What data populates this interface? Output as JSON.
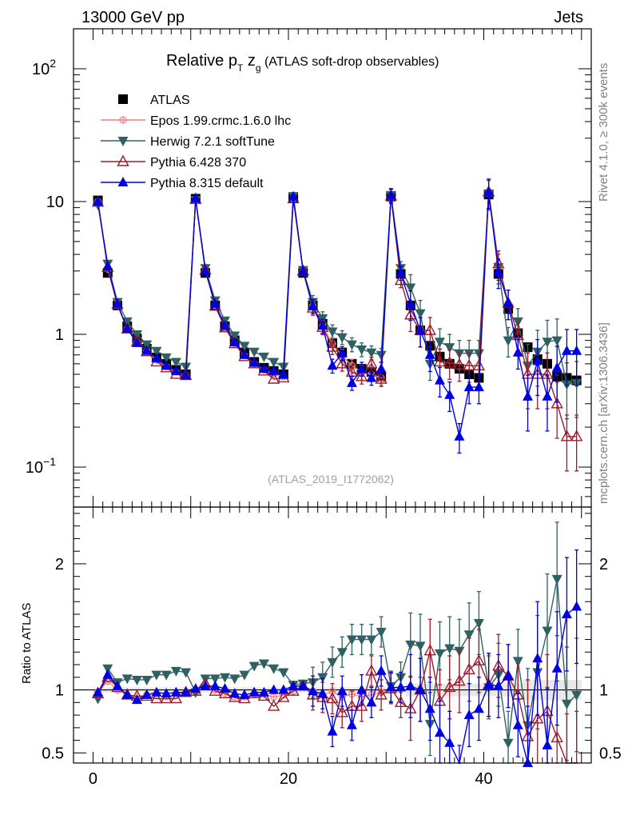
{
  "header": {
    "left": "13000 GeV pp",
    "right": "Jets"
  },
  "side": {
    "top": "Rivet 4.1.0, ≥ 300k events",
    "bottom": "mcplots.cern.ch [arXiv:1306.3436]"
  },
  "title": {
    "main": "Relative p",
    "sub_T": "T",
    "z": " z",
    "sub_g": "g",
    "rest": " (ATLAS soft-drop observables)"
  },
  "analysis_id": "(ATLAS_2019_I1772062)",
  "chart_data": {
    "type": "scatter",
    "xlim": [
      -2,
      51
    ],
    "top_ylim": [
      0.05,
      200
    ],
    "top_yscale": "log",
    "top_yticks": [
      {
        "v": 0.1,
        "l": "10",
        "e": "−1"
      },
      {
        "v": 1,
        "l": "1",
        "e": ""
      },
      {
        "v": 10,
        "l": "10",
        "e": ""
      },
      {
        "v": 100,
        "l": "10",
        "e": "2"
      }
    ],
    "xticks": [
      {
        "v": 0,
        "l": "0"
      },
      {
        "v": 20,
        "l": "20"
      },
      {
        "v": 40,
        "l": "40"
      }
    ],
    "ratio_ylabel": "Ratio to ATLAS",
    "ratio_ylim": [
      0.42,
      2.45
    ],
    "ratio_yticks": [
      {
        "v": 0.5,
        "l": "0.5"
      },
      {
        "v": 1,
        "l": "1"
      },
      {
        "v": 2,
        "l": "2"
      }
    ],
    "legend_position": "top-left",
    "series": [
      {
        "name": "ATLAS",
        "color": "#000000",
        "marker": "square",
        "x": [
          0.5,
          1.5,
          2.5,
          3.5,
          4.5,
          5.5,
          6.5,
          7.5,
          8.5,
          9.5,
          10.5,
          11.5,
          12.5,
          13.5,
          14.5,
          15.5,
          16.5,
          17.5,
          18.5,
          19.5,
          20.5,
          21.5,
          22.5,
          23.5,
          24.5,
          25.5,
          26.5,
          27.5,
          28.5,
          29.5,
          30.5,
          31.5,
          32.5,
          33.5,
          34.5,
          35.5,
          36.5,
          37.5,
          38.5,
          39.5,
          40.5,
          41.5,
          42.5,
          43.5,
          44.5,
          45.5,
          46.5,
          47.5,
          48.5,
          49.5
        ],
        "y": [
          10.2,
          2.9,
          1.65,
          1.15,
          0.93,
          0.78,
          0.67,
          0.6,
          0.54,
          0.5,
          10.5,
          2.9,
          1.65,
          1.15,
          0.9,
          0.73,
          0.62,
          0.56,
          0.53,
          0.5,
          10.6,
          2.9,
          1.65,
          1.2,
          0.86,
          0.73,
          0.6,
          0.55,
          0.52,
          0.48,
          10.9,
          2.85,
          1.65,
          1.07,
          0.82,
          0.68,
          0.6,
          0.55,
          0.5,
          0.47,
          11.3,
          2.85,
          1.55,
          1.02,
          0.8,
          0.65,
          0.6,
          0.48,
          0.47,
          0.45
        ]
      },
      {
        "name": "Epos 1.99.crmc.1.6.0 lhc",
        "color": "#f08080",
        "marker": "open-circle-cross",
        "x": [
          0.5,
          1.5,
          2.5,
          3.5,
          4.5,
          5.5,
          6.5,
          7.5,
          8.5,
          9.5,
          10.5,
          11.5,
          12.5,
          13.5,
          14.5,
          15.5,
          16.5,
          17.5,
          18.5,
          19.5,
          20.5,
          21.5,
          22.5,
          23.5,
          24.5,
          25.5,
          26.5,
          27.5,
          28.5,
          29.5
        ],
        "y": [
          10.0,
          3.1,
          1.65,
          1.1,
          0.88,
          0.75,
          0.64,
          0.57,
          0.52,
          0.49,
          10.3,
          3.0,
          1.65,
          1.12,
          0.85,
          0.69,
          0.6,
          0.54,
          0.5,
          0.48,
          10.5,
          3.0,
          1.63,
          1.15,
          0.85,
          0.69,
          0.58,
          0.52,
          0.5,
          0.47
        ]
      },
      {
        "name": "Herwig 7.2.1 softTune",
        "color": "#2f6163",
        "marker": "triangle-down",
        "x": [
          0.5,
          1.5,
          2.5,
          3.5,
          4.5,
          5.5,
          6.5,
          7.5,
          8.5,
          9.5,
          10.5,
          11.5,
          12.5,
          13.5,
          14.5,
          15.5,
          16.5,
          17.5,
          18.5,
          19.5,
          20.5,
          21.5,
          22.5,
          23.5,
          24.5,
          25.5,
          26.5,
          27.5,
          28.5,
          29.5,
          30.5,
          31.5,
          32.5,
          33.5,
          34.5,
          35.5,
          36.5,
          37.5,
          38.5,
          39.5,
          40.5,
          41.5,
          42.5,
          43.5,
          44.5,
          45.5,
          46.5,
          47.5,
          48.5,
          49.5
        ],
        "y": [
          9.5,
          3.4,
          1.75,
          1.25,
          1.0,
          0.84,
          0.75,
          0.67,
          0.62,
          0.57,
          10.3,
          3.15,
          1.8,
          1.27,
          0.98,
          0.82,
          0.74,
          0.68,
          0.62,
          0.57,
          11.0,
          3.05,
          1.75,
          1.32,
          1.05,
          0.95,
          0.84,
          0.77,
          0.73,
          0.7,
          11.2,
          3.15,
          2.25,
          1.44,
          0.6,
          0.88,
          0.8,
          0.72,
          0.72,
          0.72,
          11.5,
          3.2,
          0.9,
          1.25,
          0.58,
          0.74,
          0.88,
          0.9,
          0.42,
          0.43
        ]
      },
      {
        "name": "Pythia 6.428 370",
        "color": "#9e1a2a",
        "marker": "triangle-up-open",
        "x": [
          0.5,
          1.5,
          2.5,
          3.5,
          4.5,
          5.5,
          6.5,
          7.5,
          8.5,
          9.5,
          10.5,
          11.5,
          12.5,
          13.5,
          14.5,
          15.5,
          16.5,
          17.5,
          18.5,
          19.5,
          20.5,
          21.5,
          22.5,
          23.5,
          24.5,
          25.5,
          26.5,
          27.5,
          28.5,
          29.5,
          30.5,
          31.5,
          32.5,
          33.5,
          34.5,
          35.5,
          36.5,
          37.5,
          38.5,
          39.5,
          40.5,
          41.5,
          42.5,
          43.5,
          44.5,
          45.5,
          46.5,
          47.5,
          48.5,
          49.5
        ],
        "y": [
          9.9,
          3.2,
          1.68,
          1.1,
          0.88,
          0.74,
          0.62,
          0.56,
          0.5,
          0.49,
          10.4,
          3.05,
          1.63,
          1.12,
          0.85,
          0.68,
          0.6,
          0.53,
          0.46,
          0.47,
          10.5,
          3.0,
          1.58,
          1.13,
          0.8,
          0.6,
          0.52,
          0.48,
          0.6,
          0.46,
          11.0,
          2.55,
          1.4,
          1.07,
          1.07,
          0.62,
          0.61,
          0.59,
          0.58,
          0.58,
          11.8,
          3.4,
          1.72,
          0.98,
          0.5,
          0.5,
          0.5,
          0.3,
          0.17,
          0.17
        ]
      },
      {
        "name": "Pythia 8.315 default",
        "color": "#0000e0",
        "marker": "triangle-up",
        "x": [
          0.5,
          1.5,
          2.5,
          3.5,
          4.5,
          5.5,
          6.5,
          7.5,
          8.5,
          9.5,
          10.5,
          11.5,
          12.5,
          13.5,
          14.5,
          15.5,
          16.5,
          17.5,
          18.5,
          19.5,
          20.5,
          21.5,
          22.5,
          23.5,
          24.5,
          25.5,
          26.5,
          27.5,
          28.5,
          29.5,
          30.5,
          31.5,
          32.5,
          33.5,
          34.5,
          35.5,
          36.5,
          37.5,
          38.5,
          39.5,
          40.5,
          41.5,
          42.5,
          43.5,
          44.5,
          45.5,
          46.5,
          47.5,
          48.5,
          49.5
        ],
        "y": [
          10.0,
          3.25,
          1.7,
          1.1,
          0.86,
          0.75,
          0.66,
          0.58,
          0.53,
          0.49,
          10.6,
          3.0,
          1.7,
          1.16,
          0.87,
          0.7,
          0.61,
          0.55,
          0.53,
          0.5,
          10.9,
          3.0,
          1.63,
          1.16,
          0.58,
          0.72,
          0.43,
          0.55,
          0.47,
          0.55,
          11.1,
          2.9,
          1.7,
          1.07,
          0.7,
          0.45,
          0.35,
          0.17,
          0.4,
          0.4,
          11.8,
          2.95,
          1.72,
          0.73,
          0.34,
          0.63,
          0.34,
          0.56,
          0.75,
          0.75
        ]
      }
    ]
  },
  "ratio_data": {
    "Herwig 7.2.1 softTune": [
      0.93,
      1.17,
      1.06,
      1.09,
      1.08,
      1.08,
      1.12,
      1.12,
      1.15,
      1.14,
      0.98,
      1.09,
      1.09,
      1.1,
      1.09,
      1.12,
      1.19,
      1.21,
      1.17,
      1.14,
      1.04,
      1.05,
      1.06,
      1.1,
      1.22,
      1.3,
      1.4,
      1.4,
      1.4,
      1.46,
      1.03,
      1.1,
      1.36,
      1.35,
      0.73,
      1.29,
      1.33,
      1.31,
      1.44,
      1.53,
      1.02,
      1.12,
      0.58,
      1.23,
      0.72,
      1.14,
      1.47,
      1.88,
      0.89,
      0.96
    ],
    "Pythia 6.428 370": [
      0.97,
      1.1,
      1.02,
      0.96,
      0.95,
      0.95,
      0.93,
      0.93,
      0.93,
      0.98,
      0.99,
      1.05,
      0.99,
      0.97,
      0.94,
      0.93,
      0.97,
      0.95,
      0.87,
      0.94,
      0.99,
      1.03,
      0.96,
      0.94,
      0.93,
      0.82,
      0.87,
      0.87,
      1.15,
      0.96,
      1.01,
      0.9,
      0.85,
      1.0,
      1.31,
      0.91,
      1.02,
      1.07,
      1.16,
      1.23,
      1.04,
      1.19,
      1.11,
      0.96,
      0.63,
      0.77,
      0.83,
      0.62,
      0.36,
      0.38
    ],
    "Pythia 8.315 default": [
      0.98,
      1.12,
      1.03,
      0.96,
      0.92,
      0.96,
      0.98,
      0.97,
      0.98,
      0.98,
      1.01,
      1.03,
      1.03,
      1.01,
      0.97,
      0.96,
      0.98,
      0.98,
      1.0,
      1.0,
      1.03,
      1.03,
      0.99,
      0.97,
      0.67,
      0.99,
      0.72,
      1.0,
      0.9,
      1.15,
      1.02,
      1.02,
      1.03,
      1.0,
      0.85,
      0.66,
      0.58,
      0.31,
      0.8,
      0.85,
      1.04,
      1.03,
      1.11,
      0.72,
      0.42,
      1.25,
      0.56,
      1.17,
      1.6,
      1.66
    ]
  },
  "ratio_errors_top": [
    2.5,
    2.5,
    2.5,
    2.5,
    2.5,
    2.5,
    2.5,
    2.5,
    2.5,
    2.5,
    2.5,
    2.5,
    2.5,
    2.5,
    2.5,
    2.5,
    2.5,
    2.5,
    2.5,
    2.5,
    2.5,
    2.5,
    2.5,
    2.5,
    2.5,
    2.5,
    2.5,
    2.5,
    2.5,
    2.5,
    2.5,
    2.5,
    2.5,
    2.5,
    2.5,
    2.5,
    2.5,
    2.5,
    2.5,
    2.5,
    2.5,
    2.5,
    2.5,
    2.5,
    2.5,
    2.5,
    2.5,
    2.5,
    2.5,
    2.5
  ]
}
